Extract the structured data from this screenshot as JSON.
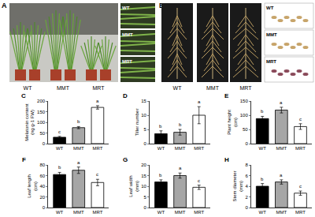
{
  "panels": [
    {
      "letter": "A",
      "labels": [
        "WT",
        "MMT",
        "MRT"
      ],
      "inset_labels": [
        "WT",
        "MMT",
        "MRT"
      ]
    },
    {
      "letter": "B",
      "labels": [
        "WT",
        "MMT",
        "MRT"
      ],
      "inset_labels": [
        "WT",
        "MMT",
        "MRT"
      ]
    }
  ],
  "chart_data": [
    {
      "type": "bar",
      "panel": "C",
      "y_label": "Melatonin content (ng g-1 FW)",
      "categories": [
        "WT",
        "MMT",
        "MRT"
      ],
      "values": [
        30,
        75,
        170
      ],
      "errors": [
        4,
        5,
        8
      ],
      "annotations": [
        "c",
        "b",
        "a"
      ],
      "colors": [
        "#000000",
        "#a6a6a6",
        "#ffffff"
      ],
      "ylim": [
        0,
        200
      ],
      "yticks": [
        0,
        50,
        100,
        150,
        200
      ]
    },
    {
      "type": "bar",
      "panel": "D",
      "y_label": "Tiller number",
      "categories": [
        "WT",
        "MMT",
        "MRT"
      ],
      "values": [
        3.5,
        4,
        10
      ],
      "errors": [
        1,
        1,
        3
      ],
      "annotations": [
        "b",
        "b",
        "a"
      ],
      "colors": [
        "#000000",
        "#a6a6a6",
        "#ffffff"
      ],
      "ylim": [
        0,
        15
      ],
      "yticks": [
        0,
        5,
        10,
        15
      ]
    },
    {
      "type": "bar",
      "panel": "E",
      "y_label": "Plant height (cm)",
      "categories": [
        "WT",
        "MMT",
        "MRT"
      ],
      "values": [
        88,
        118,
        60
      ],
      "errors": [
        8,
        10,
        10
      ],
      "annotations": [
        "b",
        "a",
        "c"
      ],
      "colors": [
        "#000000",
        "#a6a6a6",
        "#ffffff"
      ],
      "ylim": [
        0,
        150
      ],
      "yticks": [
        0,
        50,
        100,
        150
      ]
    },
    {
      "type": "bar",
      "panel": "F",
      "y_label": "Leaf length (cm)",
      "categories": [
        "WT",
        "MMT",
        "MRT"
      ],
      "values": [
        62,
        70,
        47
      ],
      "errors": [
        4,
        6,
        6
      ],
      "annotations": [
        "b",
        "a",
        "c"
      ],
      "colors": [
        "#000000",
        "#a6a6a6",
        "#ffffff"
      ],
      "ylim": [
        0,
        80
      ],
      "yticks": [
        0,
        20,
        40,
        60,
        80
      ]
    },
    {
      "type": "bar",
      "panel": "G",
      "y_label": "Leaf width (mm)",
      "categories": [
        "WT",
        "MMT",
        "MRT"
      ],
      "values": [
        12,
        15,
        9.5
      ],
      "errors": [
        1,
        1.2,
        1
      ],
      "annotations": [
        "b",
        "a",
        "c"
      ],
      "colors": [
        "#000000",
        "#a6a6a6",
        "#ffffff"
      ],
      "ylim": [
        0,
        20
      ],
      "yticks": [
        0,
        5,
        10,
        15,
        20
      ]
    },
    {
      "type": "bar",
      "panel": "H",
      "y_label": "Stem diameter (mm)",
      "categories": [
        "WT",
        "MMT",
        "MRT"
      ],
      "values": [
        4,
        4.8,
        2.7
      ],
      "errors": [
        0.5,
        0.4,
        0.4
      ],
      "annotations": [
        "b",
        "a",
        "c"
      ],
      "colors": [
        "#000000",
        "#a6a6a6",
        "#ffffff"
      ],
      "ylim": [
        0,
        8
      ],
      "yticks": [
        0,
        2,
        4,
        6,
        8
      ]
    }
  ]
}
